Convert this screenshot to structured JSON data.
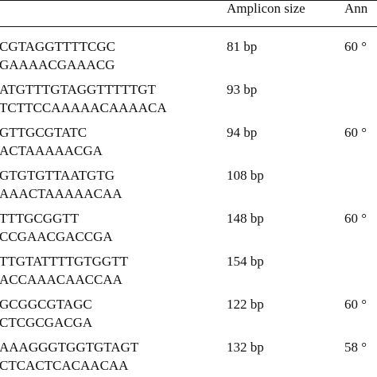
{
  "header": {
    "amplicon_size": "Amplicon size",
    "annealing_partial": "Ann"
  },
  "rows": [
    {
      "seq1": "CGTAGGTTTTCGC",
      "seq2": "GAAAACGAAACG",
      "size": "81 bp",
      "temp": "60 °"
    },
    {
      "seq1": "ATGTTTGTAGGTTTTTGT",
      "seq2": "TCTTCCAAAAACAAAACA",
      "size": "93 bp",
      "temp": ""
    },
    {
      "seq1": "GTTGCGTATC",
      "seq2": "ACTAAAAACGA",
      "size": "94 bp",
      "temp": "60 °"
    },
    {
      "seq1": "GTGTGTTAATGTG",
      "seq2": "AAACTAAAAACAA",
      "size": "108 bp",
      "temp": ""
    },
    {
      "seq1": "TTTGCGGTT",
      "seq2": "CCGAACGACCGA",
      "size": "148 bp",
      "temp": "60 °"
    },
    {
      "seq1": "TTGTATTTTGTGGTT",
      "seq2": "ACCAAACAACCAA",
      "size": "154 bp",
      "temp": ""
    },
    {
      "seq1": "GCGGCGTAGC",
      "seq2": "CTCGCGACGA",
      "size": "122 bp",
      "temp": "60 °"
    },
    {
      "seq1": "AAAGGGTGGTGTAGT",
      "seq2": "CTCACTCACAACAA",
      "size": "132 bp",
      "temp": "58 °"
    }
  ]
}
